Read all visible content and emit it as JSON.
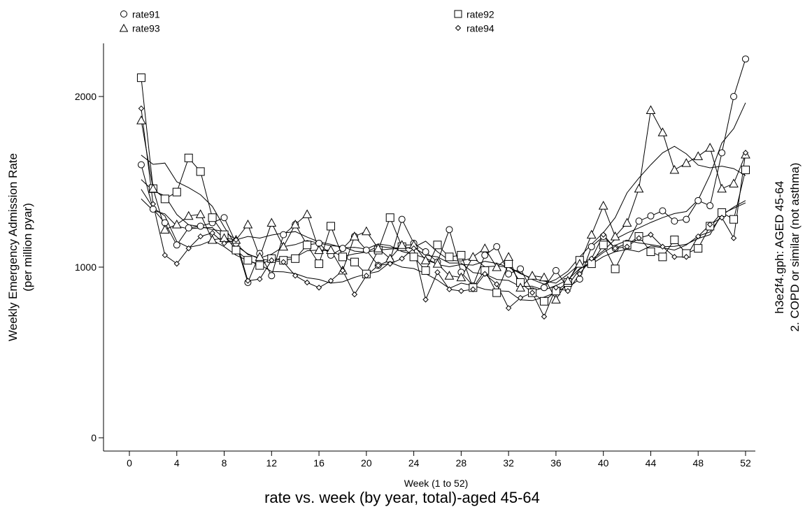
{
  "chart_data": {
    "type": "line",
    "title": "rate vs. week (by year, total)-aged 45-64",
    "xlabel": "Week (1 to 52)",
    "ylabel": "Weekly Emergency Admission Rate",
    "ylabel_sub": "(per million pyar)",
    "side_note": {
      "line1": "h3e2f4.gph: AGED 45-64",
      "line2": "2.  COPD or similar (not asthma)"
    },
    "xlim": [
      0,
      52
    ],
    "ylim": [
      0,
      2000
    ],
    "x_ticks": [
      "0",
      "4",
      "8",
      "12",
      "16",
      "20",
      "24",
      "28",
      "32",
      "36",
      "40",
      "44",
      "48",
      "52"
    ],
    "y_ticks": [
      "0",
      "1000",
      "2000"
    ],
    "grid": false,
    "legend_position": "top",
    "has_smoothed_lines": true,
    "x": [
      1,
      2,
      3,
      4,
      5,
      6,
      7,
      8,
      9,
      10,
      11,
      12,
      13,
      14,
      15,
      16,
      17,
      18,
      19,
      20,
      21,
      22,
      23,
      24,
      25,
      26,
      27,
      28,
      29,
      30,
      31,
      32,
      33,
      34,
      35,
      36,
      37,
      38,
      39,
      40,
      41,
      42,
      43,
      44,
      45,
      46,
      47,
      48,
      49,
      50,
      51,
      52
    ],
    "series": [
      {
        "name": "rate91",
        "marker": "circle",
        "values": [
          1600,
          1340,
          1260,
          1130,
          1230,
          1240,
          1260,
          1290,
          1140,
          910,
          1080,
          950,
          1190,
          1250,
          1130,
          1140,
          1070,
          1110,
          1180,
          1100,
          1010,
          1040,
          1280,
          1140,
          1090,
          1030,
          1220,
          970,
          890,
          1070,
          1120,
          960,
          990,
          860,
          880,
          980,
          880,
          930,
          1120,
          1180,
          1110,
          1140,
          1270,
          1300,
          1330,
          1270,
          1280,
          1390,
          1360,
          1670,
          2000,
          2220
        ]
      },
      {
        "name": "rate92",
        "marker": "square",
        "values": [
          2110,
          1460,
          1400,
          1440,
          1640,
          1560,
          1290,
          1190,
          1100,
          1040,
          1010,
          1050,
          1040,
          1050,
          1130,
          1020,
          1240,
          1060,
          1030,
          960,
          1100,
          1290,
          1120,
          1060,
          980,
          1130,
          1060,
          1070,
          880,
          980,
          850,
          1020,
          910,
          850,
          800,
          860,
          910,
          1040,
          1020,
          1130,
          990,
          1130,
          1180,
          1090,
          1060,
          1160,
          1080,
          1110,
          1240,
          1320,
          1280,
          1570
        ]
      },
      {
        "name": "rate93",
        "marker": "triangle",
        "values": [
          1860,
          1460,
          1220,
          1250,
          1300,
          1310,
          1160,
          1170,
          1160,
          1250,
          1060,
          1260,
          1120,
          1250,
          1310,
          1100,
          1100,
          980,
          1180,
          1210,
          1110,
          1050,
          1130,
          1130,
          1040,
          1020,
          950,
          940,
          1060,
          1110,
          1000,
          1060,
          880,
          950,
          940,
          810,
          920,
          1020,
          1190,
          1360,
          1180,
          1260,
          1460,
          1920,
          1790,
          1570,
          1610,
          1650,
          1700,
          1460,
          1490,
          1660
        ]
      },
      {
        "name": "rate94",
        "marker": "diamond",
        "values": [
          1930,
          1370,
          1070,
          1020,
          1110,
          1180,
          1200,
          1140,
          1160,
          920,
          930,
          1040,
          1030,
          950,
          910,
          880,
          920,
          980,
          840,
          950,
          1010,
          1020,
          1050,
          1110,
          810,
          970,
          870,
          860,
          870,
          960,
          900,
          760,
          820,
          850,
          710,
          880,
          860,
          960,
          1050,
          1190,
          1110,
          1120,
          1170,
          1190,
          1120,
          1060,
          1060,
          1180,
          1250,
          1290,
          1170,
          1670
        ]
      }
    ]
  }
}
